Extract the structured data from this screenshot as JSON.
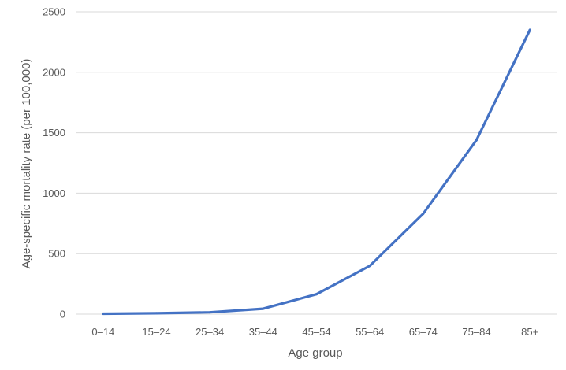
{
  "chart_data": {
    "type": "line",
    "title": "",
    "xlabel": "Age group",
    "ylabel": "Age-specific mortality rate (per 100,000)",
    "categories": [
      "0–14",
      "15–24",
      "25–34",
      "35–44",
      "45–54",
      "55–64",
      "65–74",
      "75–84",
      "85+"
    ],
    "series": [
      {
        "values": [
          3,
          7,
          15,
          45,
          165,
          400,
          830,
          1440,
          2350
        ],
        "color": "#4472c4"
      }
    ],
    "ylim": [
      0,
      2500
    ],
    "yticks": [
      0,
      500,
      1000,
      1500,
      2000,
      2500
    ],
    "grid": true,
    "legend": "none"
  }
}
